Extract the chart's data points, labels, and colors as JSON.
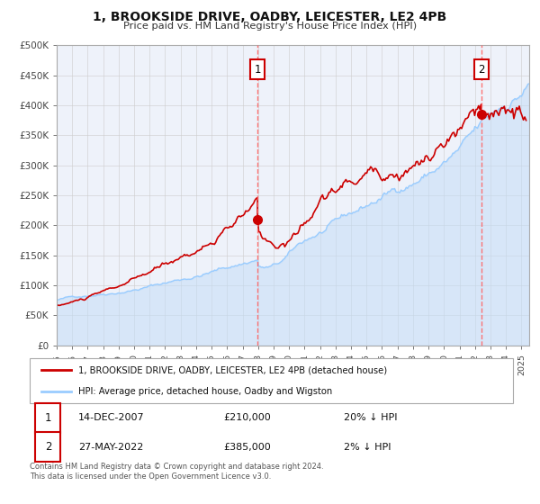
{
  "title": "1, BROOKSIDE DRIVE, OADBY, LEICESTER, LE2 4PB",
  "subtitle": "Price paid vs. HM Land Registry's House Price Index (HPI)",
  "legend_line1": "1, BROOKSIDE DRIVE, OADBY, LEICESTER, LE2 4PB (detached house)",
  "legend_line2": "HPI: Average price, detached house, Oadby and Wigston",
  "annotation1_date": "14-DEC-2007",
  "annotation1_price": "£210,000",
  "annotation1_hpi": "20% ↓ HPI",
  "annotation2_date": "27-MAY-2022",
  "annotation2_price": "£385,000",
  "annotation2_hpi": "2% ↓ HPI",
  "footer1": "Contains HM Land Registry data © Crown copyright and database right 2024.",
  "footer2": "This data is licensed under the Open Government Licence v3.0.",
  "property_color": "#cc0000",
  "hpi_color": "#99ccff",
  "hpi_fill_color": "#c5ddf7",
  "vline_color": "#ff6666",
  "background_color": "#ffffff",
  "plot_bg_color": "#eef2fa",
  "grid_color": "#cccccc",
  "ylim": [
    0,
    500000
  ],
  "yticks": [
    0,
    50000,
    100000,
    150000,
    200000,
    250000,
    300000,
    350000,
    400000,
    450000,
    500000
  ],
  "ytick_labels": [
    "£0",
    "£50K",
    "£100K",
    "£150K",
    "£200K",
    "£250K",
    "£300K",
    "£350K",
    "£400K",
    "£450K",
    "£500K"
  ],
  "xstart_year": 1995,
  "xend_year": 2025,
  "sale1_year": 2007.96,
  "sale1_value": 210000,
  "sale2_year": 2022.4,
  "sale2_value": 385000
}
